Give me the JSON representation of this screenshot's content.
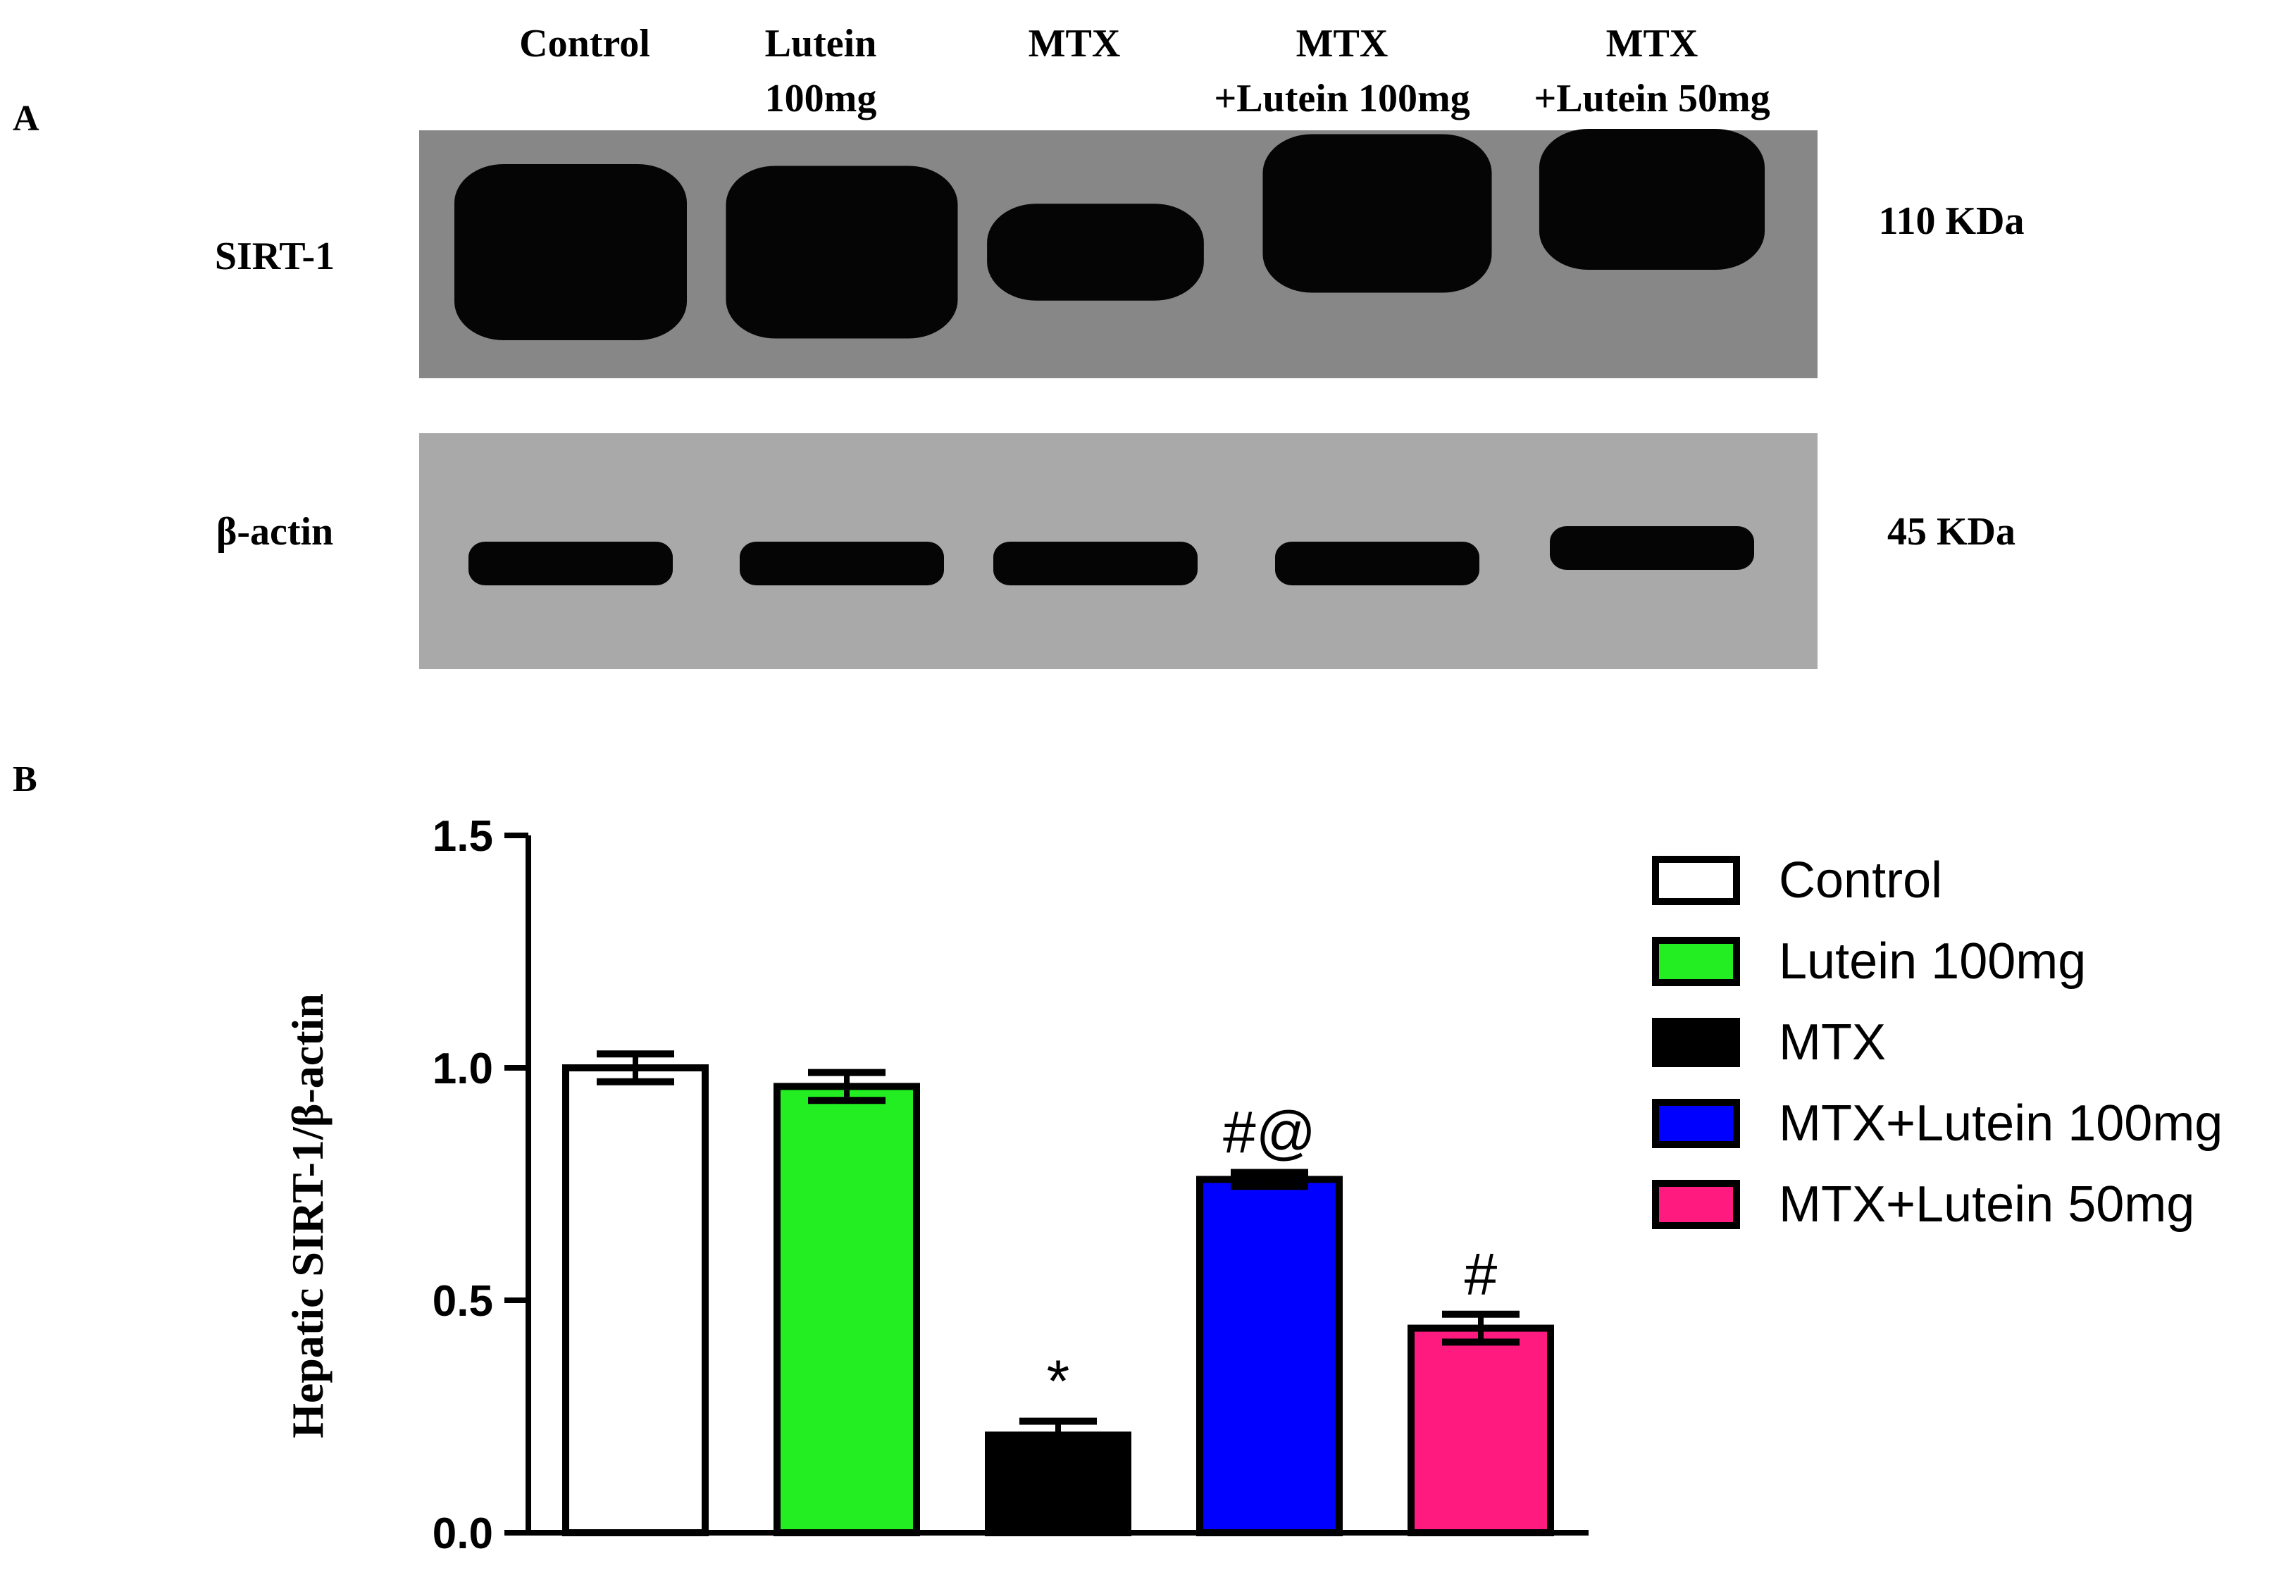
{
  "panel_a": {
    "label": "A",
    "lanes": [
      [
        "Control"
      ],
      [
        "Lutein",
        "100mg"
      ],
      [
        "MTX"
      ],
      [
        "MTX",
        "+Lutein 100mg"
      ],
      [
        "MTX",
        "+Lutein 50mg"
      ]
    ],
    "blots": [
      {
        "protein": "SIRT-1",
        "size": "110 KDa",
        "background": "#878787",
        "band_intensity": [
          1.0,
          0.98,
          0.55,
          0.9,
          0.8
        ]
      },
      {
        "protein": "β-actin",
        "size": "45 KDa",
        "background": "#a9a9a9",
        "band_intensity": [
          1.0,
          1.0,
          1.0,
          1.0,
          1.0
        ]
      }
    ]
  },
  "panel_b": {
    "label": "B"
  },
  "chart_data": {
    "type": "bar",
    "categories": [
      "Control",
      "Lutein 100mg",
      "MTX",
      "MTX+Lutein 100mg",
      "MTX+Lutein 50mg"
    ],
    "values": [
      1.0,
      0.96,
      0.21,
      0.76,
      0.44
    ],
    "errors": [
      0.03,
      0.03,
      0.03,
      0.015,
      0.03
    ],
    "annotations": [
      "",
      "",
      "*",
      "#@",
      "#"
    ],
    "colors": [
      "#ffffff",
      "#22ee22",
      "#000000",
      "#0000ff",
      "#ff1a80"
    ],
    "ylabel": "Hepatic SIRT-1/β-actin",
    "ylim": [
      0,
      1.5
    ],
    "yticks": [
      "0.0",
      "0.5",
      "1.0",
      "1.5"
    ],
    "ytick_values": [
      0,
      0.5,
      1.0,
      1.5
    ],
    "grid": false,
    "legend": {
      "position": "right",
      "entries": [
        "Control",
        "Lutein 100mg",
        "MTX",
        "MTX+Lutein 100mg",
        "MTX+Lutein 50mg"
      ]
    }
  }
}
